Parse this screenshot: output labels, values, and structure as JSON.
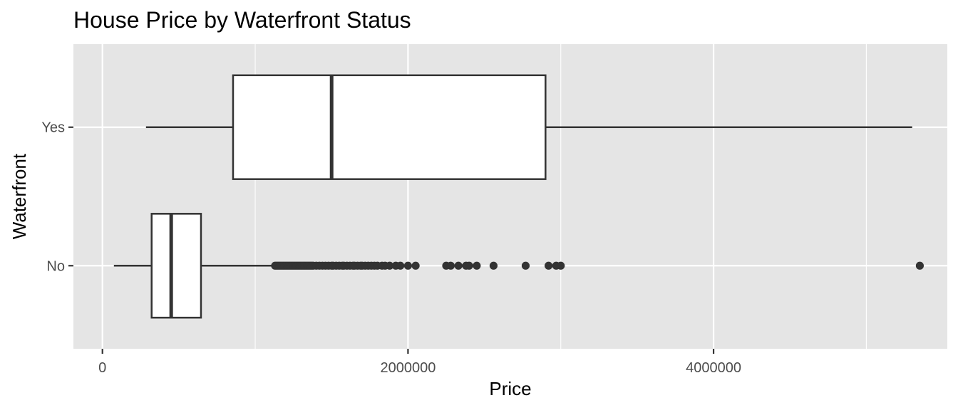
{
  "chart_data": {
    "type": "boxplot",
    "orientation": "horizontal",
    "title": "House Price by Waterfront Status",
    "xlabel": "Price",
    "ylabel": "Waterfront",
    "xlim": [
      -190000,
      5530000
    ],
    "xticks": [
      0,
      2000000,
      4000000
    ],
    "xtick_labels": [
      "0",
      "2000000",
      "4000000"
    ],
    "grid": true,
    "colors": {
      "panel": "#e5e5e5",
      "grid": "#ffffff",
      "box_fill": "#ffffff",
      "stroke": "#333333",
      "tick_text": "#4d4d4d"
    },
    "categories": [
      "No",
      "Yes"
    ],
    "boxes": [
      {
        "category": "No",
        "whisker_low": 75000,
        "q1": 322000,
        "median": 450000,
        "q3": 645000,
        "whisker_high": 1127000,
        "outliers": [
          1130000,
          1140000,
          1150000,
          1160000,
          1170000,
          1180000,
          1190000,
          1200000,
          1210000,
          1220000,
          1230000,
          1240000,
          1250000,
          1260000,
          1270000,
          1280000,
          1290000,
          1300000,
          1310000,
          1320000,
          1330000,
          1340000,
          1350000,
          1360000,
          1370000,
          1380000,
          1400000,
          1420000,
          1440000,
          1460000,
          1480000,
          1500000,
          1510000,
          1530000,
          1550000,
          1570000,
          1580000,
          1600000,
          1620000,
          1640000,
          1650000,
          1670000,
          1690000,
          1700000,
          1720000,
          1740000,
          1760000,
          1780000,
          1800000,
          1830000,
          1850000,
          1880000,
          1920000,
          1950000,
          2000000,
          2050000,
          2250000,
          2280000,
          2330000,
          2380000,
          2400000,
          2450000,
          2560000,
          2770000,
          2920000,
          2970000,
          3000000,
          5350000
        ]
      },
      {
        "category": "Yes",
        "whisker_low": 285000,
        "q1": 855000,
        "median": 1500000,
        "q3": 2900000,
        "whisker_high": 5300000,
        "outliers": []
      }
    ]
  }
}
